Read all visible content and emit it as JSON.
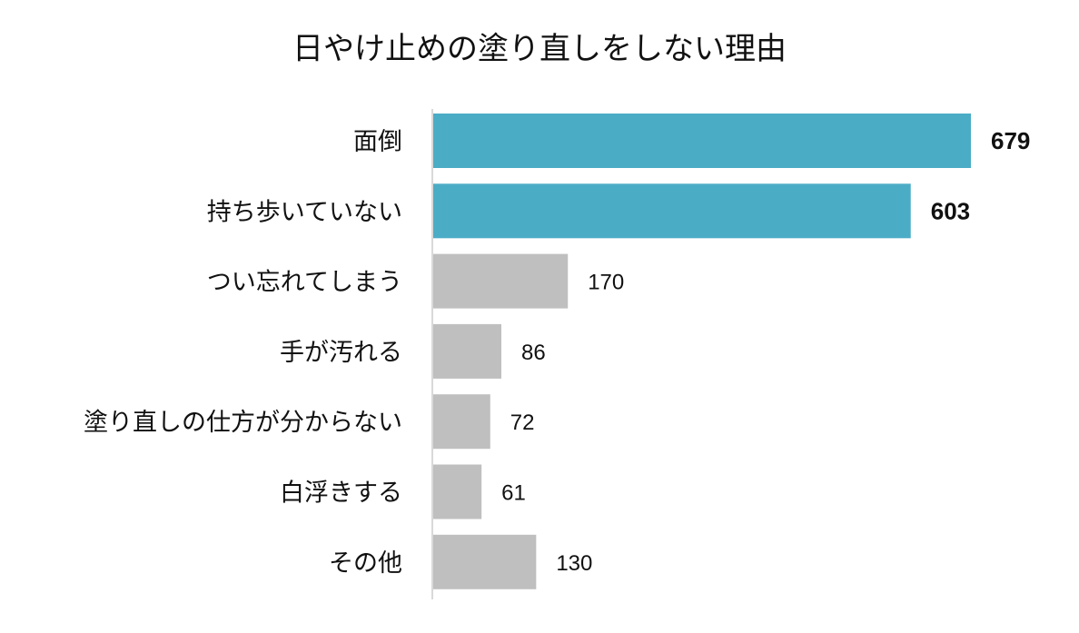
{
  "chart_data": {
    "type": "bar",
    "orientation": "horizontal",
    "title": "日やけ止めの塗り直しをしない理由",
    "categories": [
      "面倒",
      "持ち歩いていない",
      "つい忘れてしまう",
      "手が汚れる",
      "塗り直しの仕方が分からない",
      "白浮きする",
      "その他"
    ],
    "values": [
      679,
      603,
      170,
      86,
      72,
      61,
      130
    ],
    "highlighted": [
      true,
      true,
      false,
      false,
      false,
      false,
      false
    ],
    "colors": {
      "highlight": "#4BACC6",
      "default": "#BFBFBF",
      "axis": "#D9D9D9"
    },
    "xlim": [
      0,
      679
    ],
    "grid": false,
    "legend": "none"
  }
}
